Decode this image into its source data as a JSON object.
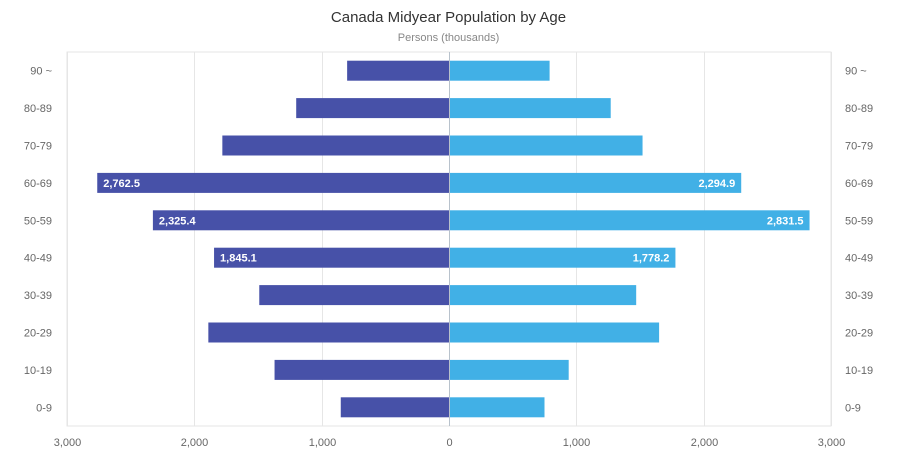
{
  "chart_data": {
    "type": "bar",
    "orientation": "horizontal-diverging",
    "title": "Canada Midyear Population by Age",
    "subtitle": "Persons (thousands)",
    "categories": [
      "90 ~",
      "80-89",
      "70-79",
      "60-69",
      "50-59",
      "40-49",
      "30-39",
      "20-29",
      "10-19",
      "0-9"
    ],
    "series": [
      {
        "values": [
          800,
          1200,
          1780,
          2762.5,
          2325.4,
          1845.1,
          1490,
          1890,
          1370,
          850
        ],
        "color": "#4751a8",
        "direction": "left"
      },
      {
        "values": [
          790,
          1270,
          1520,
          2294.9,
          2831.5,
          1778.2,
          1470,
          1650,
          940,
          750
        ],
        "color": "#41b0e6",
        "direction": "right"
      }
    ],
    "data_labels": {
      "left": [
        "",
        "",
        "",
        "2,762.5",
        "2,325.4",
        "1,845.1",
        "",
        "",
        "",
        ""
      ],
      "right": [
        "",
        "",
        "",
        "2,294.9",
        "2,831.5",
        "1,778.2",
        "",
        "",
        "",
        ""
      ]
    },
    "x_ticks": [
      "3,000",
      "2,000",
      "1,000",
      "0",
      "1,000",
      "2,000",
      "3,000"
    ],
    "xlim": [
      -3000,
      3000
    ],
    "grid": true
  }
}
